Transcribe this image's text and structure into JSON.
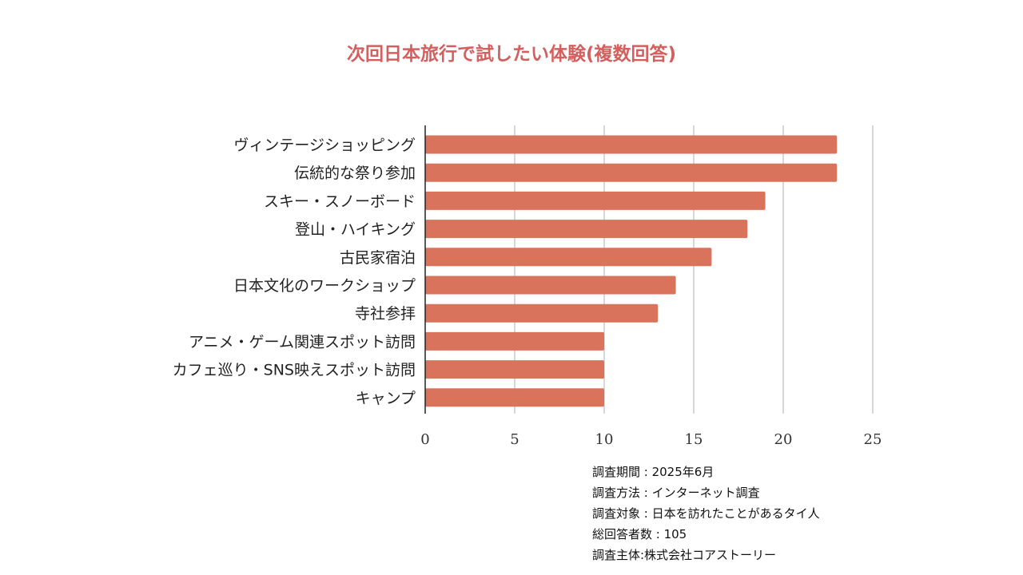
{
  "chart_data": {
    "type": "bar",
    "orientation": "horizontal",
    "title": "次回日本旅行で試したい体験(複数回答)",
    "categories": [
      "ヴィンテージショッピング",
      "伝統的な祭り参加",
      "スキー・スノーボード",
      "登山・ハイキング",
      "古民家宿泊",
      "日本文化のワークショップ",
      "寺社参拝",
      "アニメ・ゲーム関連スポット訪問",
      "カフェ巡り・SNS映えスポット訪問",
      "キャンプ"
    ],
    "values": [
      23,
      23,
      19,
      18,
      16,
      14,
      13,
      10,
      10,
      10
    ],
    "xlim": [
      0,
      25
    ],
    "xticks": [
      0,
      5,
      10,
      15,
      20,
      25
    ],
    "grid": true,
    "legend": "none",
    "bar_color": "#d9735b",
    "title_color": "#d35f5f"
  },
  "notes": [
    "調査期間 : 2025年6月",
    "調査方法 :  インターネット調査",
    "調査対象 : 日本を訪れたことがあるタイ人",
    "総回答者数 : 105",
    "調査主体:株式会社コアストーリー"
  ]
}
